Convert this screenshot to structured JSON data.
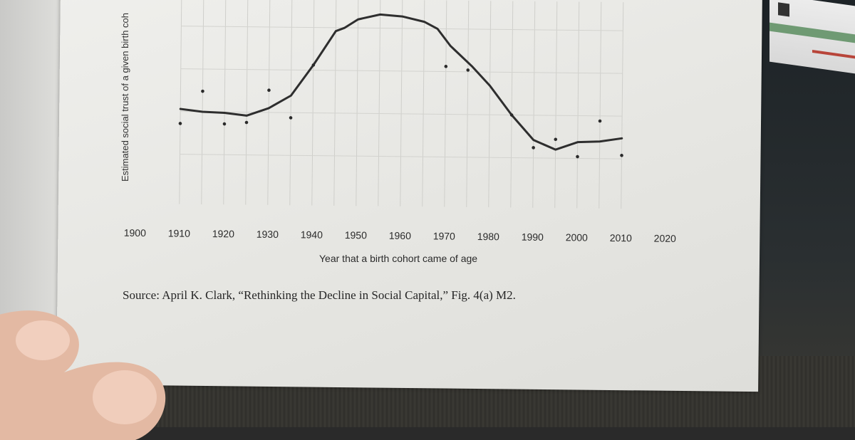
{
  "chart_data": {
    "type": "line",
    "xlabel": "Year that a birth cohort came of age",
    "ylabel": "Estimated social trust of a given birth coh",
    "x_ticks": [
      "1900",
      "1910",
      "1920",
      "1930",
      "1940",
      "1950",
      "1960",
      "1970",
      "1980",
      "1990",
      "2000",
      "2010",
      "2020"
    ],
    "xlim": [
      1900,
      2020
    ],
    "grid": true,
    "series": [
      {
        "role": "trend-line",
        "points": [
          [
            1910,
            0.515
          ],
          [
            1915,
            0.5
          ],
          [
            1920,
            0.495
          ],
          [
            1925,
            0.48
          ],
          [
            1930,
            0.525
          ],
          [
            1935,
            0.6
          ],
          [
            1940,
            0.78
          ],
          [
            1945,
            0.98
          ],
          [
            1947,
            1.0
          ],
          [
            1950,
            1.05
          ],
          [
            1955,
            1.08
          ],
          [
            1960,
            1.07
          ],
          [
            1965,
            1.04
          ],
          [
            1968,
            1.0
          ],
          [
            1971,
            0.9
          ],
          [
            1976,
            0.78
          ],
          [
            1980,
            0.67
          ],
          [
            1985,
            0.5
          ],
          [
            1990,
            0.355
          ],
          [
            1995,
            0.3
          ],
          [
            2000,
            0.345
          ],
          [
            2005,
            0.35
          ],
          [
            2010,
            0.37
          ]
        ]
      },
      {
        "role": "data-points",
        "points": [
          [
            1910,
            0.43
          ],
          [
            1915,
            0.62
          ],
          [
            1920,
            0.43
          ],
          [
            1925,
            0.44
          ],
          [
            1930,
            0.63
          ],
          [
            1935,
            0.47
          ],
          [
            1940,
            0.78
          ],
          [
            1970,
            0.78
          ],
          [
            1975,
            0.76
          ],
          [
            1985,
            0.5
          ],
          [
            1990,
            0.31
          ],
          [
            1995,
            0.36
          ],
          [
            2000,
            0.26
          ],
          [
            2005,
            0.47
          ],
          [
            2010,
            0.27
          ]
        ]
      }
    ]
  },
  "source_text": "Source: April K. Clark, “Rethinking the Decline in Social Capital,” Fig. 4(a) M2."
}
